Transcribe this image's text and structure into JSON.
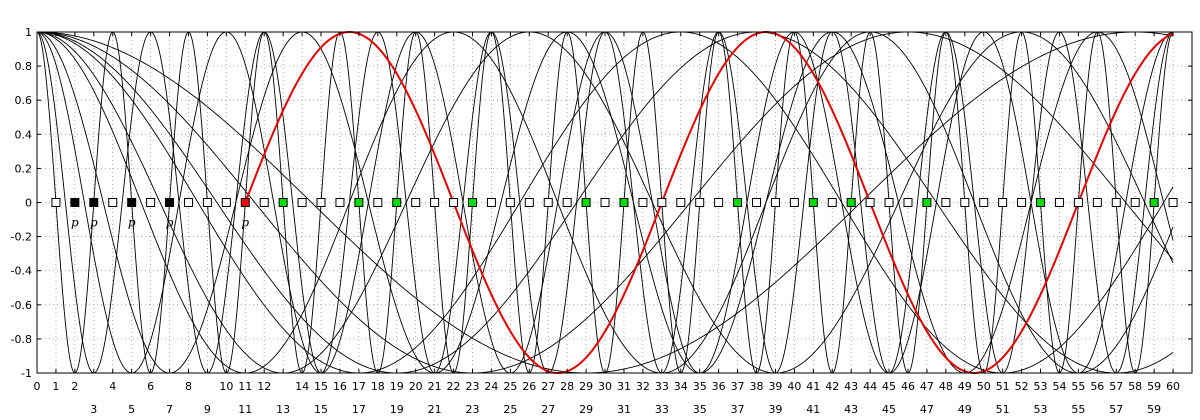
{
  "chart_data": {
    "type": "line",
    "title": "",
    "xlabel": "",
    "ylabel": "",
    "xlim": [
      0,
      61
    ],
    "ylim": [
      -1,
      1
    ],
    "grid": true,
    "x_ticks": [
      0,
      1,
      2,
      3,
      4,
      5,
      6,
      7,
      8,
      9,
      10,
      11,
      12,
      13,
      14,
      15,
      16,
      17,
      18,
      19,
      20,
      21,
      22,
      23,
      24,
      25,
      26,
      27,
      28,
      29,
      30,
      31,
      32,
      33,
      34,
      35,
      36,
      37,
      38,
      39,
      40,
      41,
      42,
      43,
      44,
      45,
      46,
      47,
      48,
      49,
      50,
      51,
      52,
      53,
      54,
      55,
      56,
      57,
      58,
      59,
      60
    ],
    "x_tick_labels_upper": [
      "0",
      "1",
      "2",
      "4",
      "6",
      "8",
      "10",
      "11",
      "12",
      "14",
      "15",
      "16",
      "17",
      "18",
      "19",
      "20",
      "21",
      "22",
      "23",
      "24",
      "25",
      "26",
      "27",
      "28",
      "29",
      "30",
      "31",
      "32",
      "33",
      "34",
      "35",
      "36",
      "37",
      "38",
      "39",
      "40",
      "41",
      "42",
      "43",
      "44",
      "45",
      "46",
      "47",
      "48",
      "49",
      "50",
      "51",
      "52",
      "53",
      "54",
      "55",
      "56",
      "57",
      "58",
      "59",
      "60"
    ],
    "x_tick_labels_lower": [
      "3",
      "5",
      "7",
      "9",
      "11",
      "13",
      "15",
      "17",
      "19",
      "21",
      "23",
      "25",
      "27",
      "29",
      "31",
      "33",
      "35",
      "37",
      "39",
      "41",
      "43",
      "45",
      "47",
      "49",
      "51",
      "53",
      "55",
      "57",
      "59"
    ],
    "y_ticks": [
      -1,
      -0.8,
      -0.6,
      -0.4,
      -0.2,
      0,
      0.2,
      0.4,
      0.6,
      0.8,
      1
    ],
    "y_tick_labels": [
      "-1",
      "-0.8",
      "-0.6",
      "-0.4",
      "-0.2",
      "0",
      "0.2",
      "0.4",
      "0.6",
      "0.8",
      "1"
    ],
    "series": [
      {
        "color": "#000000",
        "width": 0.9,
        "period": 2,
        "end": 60
      },
      {
        "color": "#000000",
        "width": 0.9,
        "period": 3,
        "end": 60
      },
      {
        "color": "#000000",
        "width": 0.9,
        "period": 5,
        "end": 60
      },
      {
        "color": "#000000",
        "width": 0.9,
        "period": 7,
        "end": 60
      },
      {
        "color": "#000000",
        "width": 0.9,
        "period": 11,
        "end": 60
      },
      {
        "color": "#000000",
        "width": 0.9,
        "period": 13,
        "end": 60
      },
      {
        "color": "#000000",
        "width": 0.9,
        "period": 17,
        "end": 60
      },
      {
        "color": "#000000",
        "width": 0.9,
        "period": 19,
        "end": 60
      },
      {
        "color": "#000000",
        "width": 0.9,
        "period": 23,
        "end": 60
      },
      {
        "color": "#000000",
        "width": 0.9,
        "period": 29,
        "end": 60
      },
      {
        "color": "#e00000",
        "width": 2,
        "period": 22,
        "start": 11,
        "end": 60
      }
    ],
    "markers": {
      "y": 0,
      "points": [
        {
          "x": 1,
          "fill": "#ffffff"
        },
        {
          "x": 2,
          "fill": "#000000"
        },
        {
          "x": 3,
          "fill": "#000000"
        },
        {
          "x": 4,
          "fill": "#ffffff"
        },
        {
          "x": 5,
          "fill": "#000000"
        },
        {
          "x": 6,
          "fill": "#ffffff"
        },
        {
          "x": 7,
          "fill": "#000000"
        },
        {
          "x": 8,
          "fill": "#ffffff"
        },
        {
          "x": 9,
          "fill": "#ffffff"
        },
        {
          "x": 10,
          "fill": "#ffffff"
        },
        {
          "x": 11,
          "fill": "#ff0000"
        },
        {
          "x": 12,
          "fill": "#ffffff"
        },
        {
          "x": 13,
          "fill": "#00dd00"
        },
        {
          "x": 14,
          "fill": "#ffffff"
        },
        {
          "x": 15,
          "fill": "#ffffff"
        },
        {
          "x": 16,
          "fill": "#ffffff"
        },
        {
          "x": 17,
          "fill": "#00dd00"
        },
        {
          "x": 18,
          "fill": "#ffffff"
        },
        {
          "x": 19,
          "fill": "#00dd00"
        },
        {
          "x": 20,
          "fill": "#ffffff"
        },
        {
          "x": 21,
          "fill": "#ffffff"
        },
        {
          "x": 22,
          "fill": "#ffffff"
        },
        {
          "x": 23,
          "fill": "#00dd00"
        },
        {
          "x": 24,
          "fill": "#ffffff"
        },
        {
          "x": 25,
          "fill": "#ffffff"
        },
        {
          "x": 26,
          "fill": "#ffffff"
        },
        {
          "x": 27,
          "fill": "#ffffff"
        },
        {
          "x": 28,
          "fill": "#ffffff"
        },
        {
          "x": 29,
          "fill": "#00dd00"
        },
        {
          "x": 30,
          "fill": "#ffffff"
        },
        {
          "x": 31,
          "fill": "#00dd00"
        },
        {
          "x": 32,
          "fill": "#ffffff"
        },
        {
          "x": 33,
          "fill": "#ffffff"
        },
        {
          "x": 34,
          "fill": "#ffffff"
        },
        {
          "x": 35,
          "fill": "#ffffff"
        },
        {
          "x": 36,
          "fill": "#ffffff"
        },
        {
          "x": 37,
          "fill": "#00dd00"
        },
        {
          "x": 38,
          "fill": "#ffffff"
        },
        {
          "x": 39,
          "fill": "#ffffff"
        },
        {
          "x": 40,
          "fill": "#ffffff"
        },
        {
          "x": 41,
          "fill": "#00dd00"
        },
        {
          "x": 42,
          "fill": "#ffffff"
        },
        {
          "x": 43,
          "fill": "#00dd00"
        },
        {
          "x": 44,
          "fill": "#ffffff"
        },
        {
          "x": 45,
          "fill": "#ffffff"
        },
        {
          "x": 46,
          "fill": "#ffffff"
        },
        {
          "x": 47,
          "fill": "#00dd00"
        },
        {
          "x": 48,
          "fill": "#ffffff"
        },
        {
          "x": 49,
          "fill": "#ffffff"
        },
        {
          "x": 50,
          "fill": "#ffffff"
        },
        {
          "x": 51,
          "fill": "#ffffff"
        },
        {
          "x": 52,
          "fill": "#ffffff"
        },
        {
          "x": 53,
          "fill": "#00dd00"
        },
        {
          "x": 54,
          "fill": "#ffffff"
        },
        {
          "x": 55,
          "fill": "#ffffff"
        },
        {
          "x": 56,
          "fill": "#ffffff"
        },
        {
          "x": 57,
          "fill": "#ffffff"
        },
        {
          "x": 58,
          "fill": "#ffffff"
        },
        {
          "x": 59,
          "fill": "#00dd00"
        },
        {
          "x": 60,
          "fill": "#ffffff"
        }
      ]
    },
    "annotations": [
      {
        "x": 2,
        "text": "p"
      },
      {
        "x": 3,
        "text": "p"
      },
      {
        "x": 5,
        "text": "p"
      },
      {
        "x": 7,
        "text": "p"
      },
      {
        "x": 11,
        "text": "p"
      }
    ]
  }
}
